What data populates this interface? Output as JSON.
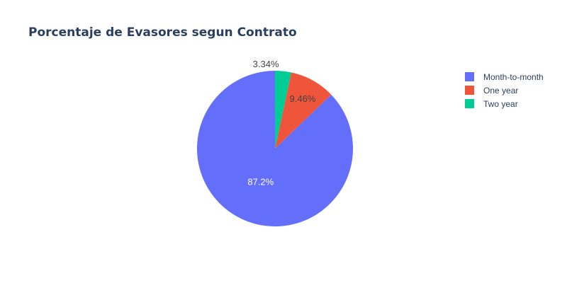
{
  "chart_data": {
    "type": "pie",
    "title": "Porcentaje de Evasores segun Contrato",
    "categories": [
      "Month-to-month",
      "One year",
      "Two year"
    ],
    "values": [
      87.2,
      9.46,
      3.34
    ],
    "labels": [
      "87.2%",
      "9.46%",
      "3.34%"
    ],
    "colors": [
      "#636efa",
      "#ef553b",
      "#00cc96"
    ],
    "direction": "counterclockwise",
    "legend": {
      "placement": "top-right",
      "entries": [
        "Month-to-month",
        "One year",
        "Two year"
      ]
    }
  }
}
